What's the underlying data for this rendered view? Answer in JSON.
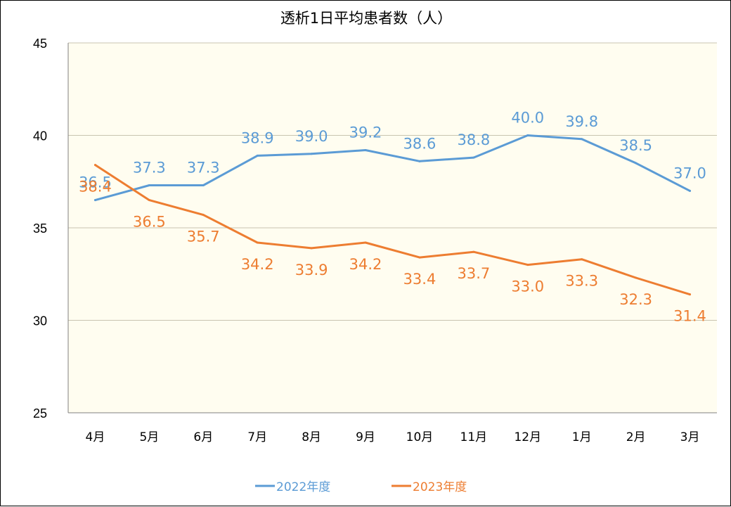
{
  "chart_data": {
    "type": "line",
    "title": "透析1日平均患者数（人）",
    "xlabel": "",
    "ylabel": "",
    "categories": [
      "4月",
      "5月",
      "6月",
      "7月",
      "8月",
      "9月",
      "10月",
      "11月",
      "12月",
      "1月",
      "2月",
      "3月"
    ],
    "yticks": [
      25,
      30,
      35,
      40,
      45
    ],
    "ylim": [
      25,
      45
    ],
    "grid": true,
    "legend_position": "bottom",
    "plot_background": "#fffdf0",
    "series": [
      {
        "name": "2022年度",
        "color": "#5b9bd5",
        "values": [
          36.5,
          37.3,
          37.3,
          38.9,
          39.0,
          39.2,
          38.6,
          38.8,
          40.0,
          39.8,
          38.5,
          37.0
        ],
        "labels": [
          "36.5",
          "37.3",
          "37.3",
          "38.9",
          "39.0",
          "39.2",
          "38.6",
          "38.8",
          "40.0",
          "39.8",
          "38.5",
          "37.0"
        ]
      },
      {
        "name": "2023年度",
        "color": "#ed7d31",
        "values": [
          38.4,
          36.5,
          35.7,
          34.2,
          33.9,
          34.2,
          33.4,
          33.7,
          33.0,
          33.3,
          32.3,
          31.4
        ],
        "labels": [
          "38.4",
          "36.5",
          "35.7",
          "34.2",
          "33.9",
          "34.2",
          "33.4",
          "33.7",
          "33.0",
          "33.3",
          "32.3",
          "31.4"
        ]
      }
    ]
  }
}
